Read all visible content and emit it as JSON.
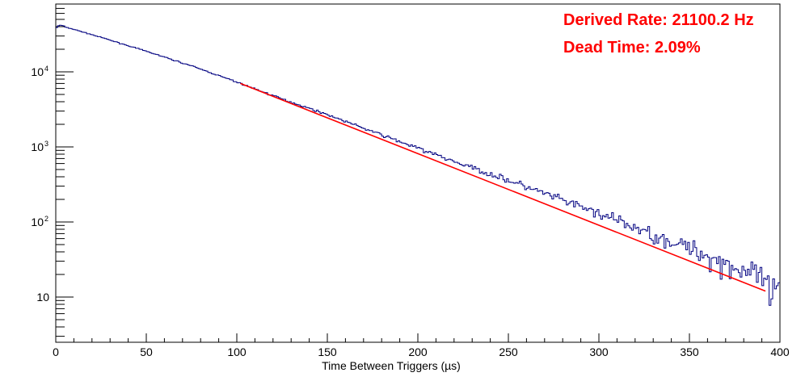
{
  "chart_data": {
    "type": "line",
    "title": "",
    "xlabel": "Time Between Triggers (µs)",
    "ylabel": "",
    "xlim": [
      0,
      400
    ],
    "ylim": [
      2.5,
      80000
    ],
    "y_scale": "log",
    "grid": false,
    "legend": false,
    "x_ticks": [
      "0",
      "50",
      "100",
      "150",
      "200",
      "250",
      "300",
      "350",
      "400"
    ],
    "y_ticks": [
      {
        "value": 10,
        "base": "10",
        "exp": ""
      },
      {
        "value": 100,
        "base": "10",
        "exp": "2"
      },
      {
        "value": 1000,
        "base": "10",
        "exp": "3"
      },
      {
        "value": 10000,
        "base": "10",
        "exp": "4"
      }
    ],
    "series": [
      {
        "kind": "histogram",
        "color": "#000080",
        "bin_width_us": 1,
        "points": [
          [
            0,
            38000
          ],
          [
            2,
            42000
          ],
          [
            4,
            41000
          ],
          [
            6,
            39000
          ],
          [
            8,
            38000
          ],
          [
            25,
            28800
          ],
          [
            50,
            18800
          ],
          [
            75,
            12000
          ],
          [
            100,
            7300
          ],
          [
            125,
            4350
          ],
          [
            150,
            2700
          ],
          [
            175,
            1600
          ],
          [
            200,
            960
          ],
          [
            225,
            580
          ],
          [
            250,
            360
          ],
          [
            275,
            215
          ],
          [
            300,
            130
          ],
          [
            325,
            75
          ],
          [
            350,
            45
          ],
          [
            375,
            25
          ],
          [
            390,
            18
          ],
          [
            395,
            11
          ],
          [
            400,
            12
          ]
        ]
      },
      {
        "kind": "fit",
        "color": "#ff0000",
        "x_range": [
          102,
          392
        ],
        "points": [
          [
            102,
            7000
          ],
          [
            392,
            12
          ]
        ]
      }
    ]
  },
  "annotations": {
    "rate": "Derived Rate: 21100.2 Hz",
    "dead_time": "Dead Time: 2.09%"
  }
}
